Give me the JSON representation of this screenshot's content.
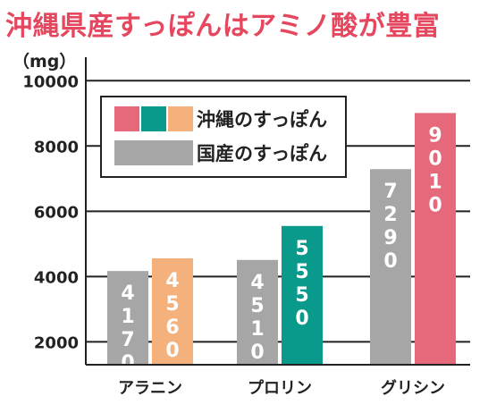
{
  "title": "沖縄県産すっぽんはアミノ酸が豊富",
  "unit": "（mg）",
  "colors": {
    "okinawa_alanine": "#f4b17c",
    "okinawa_proline": "#0a9a8c",
    "okinawa_glycine": "#e6697b",
    "domestic": "#a6a6a6",
    "legend_okinawa_swatches": [
      "#e6697b",
      "#0a9a8c",
      "#f4b17c"
    ]
  },
  "chart_data": {
    "type": "bar",
    "categories": [
      "アラニン",
      "プロリン",
      "グリシン"
    ],
    "series": [
      {
        "name": "国産のすっぽん",
        "values": [
          4170,
          4510,
          7290
        ],
        "labels": [
          "4170",
          "4510",
          "7290"
        ]
      },
      {
        "name": "沖縄のすっぽん",
        "values": [
          4560,
          5550,
          9010
        ],
        "labels": [
          "4560",
          "5550",
          "9010"
        ]
      }
    ],
    "yticks": [
      2000,
      4000,
      6000,
      8000,
      10000
    ],
    "ylim": [
      1300,
      10500
    ],
    "grid": true,
    "legend_position": "top-left"
  }
}
